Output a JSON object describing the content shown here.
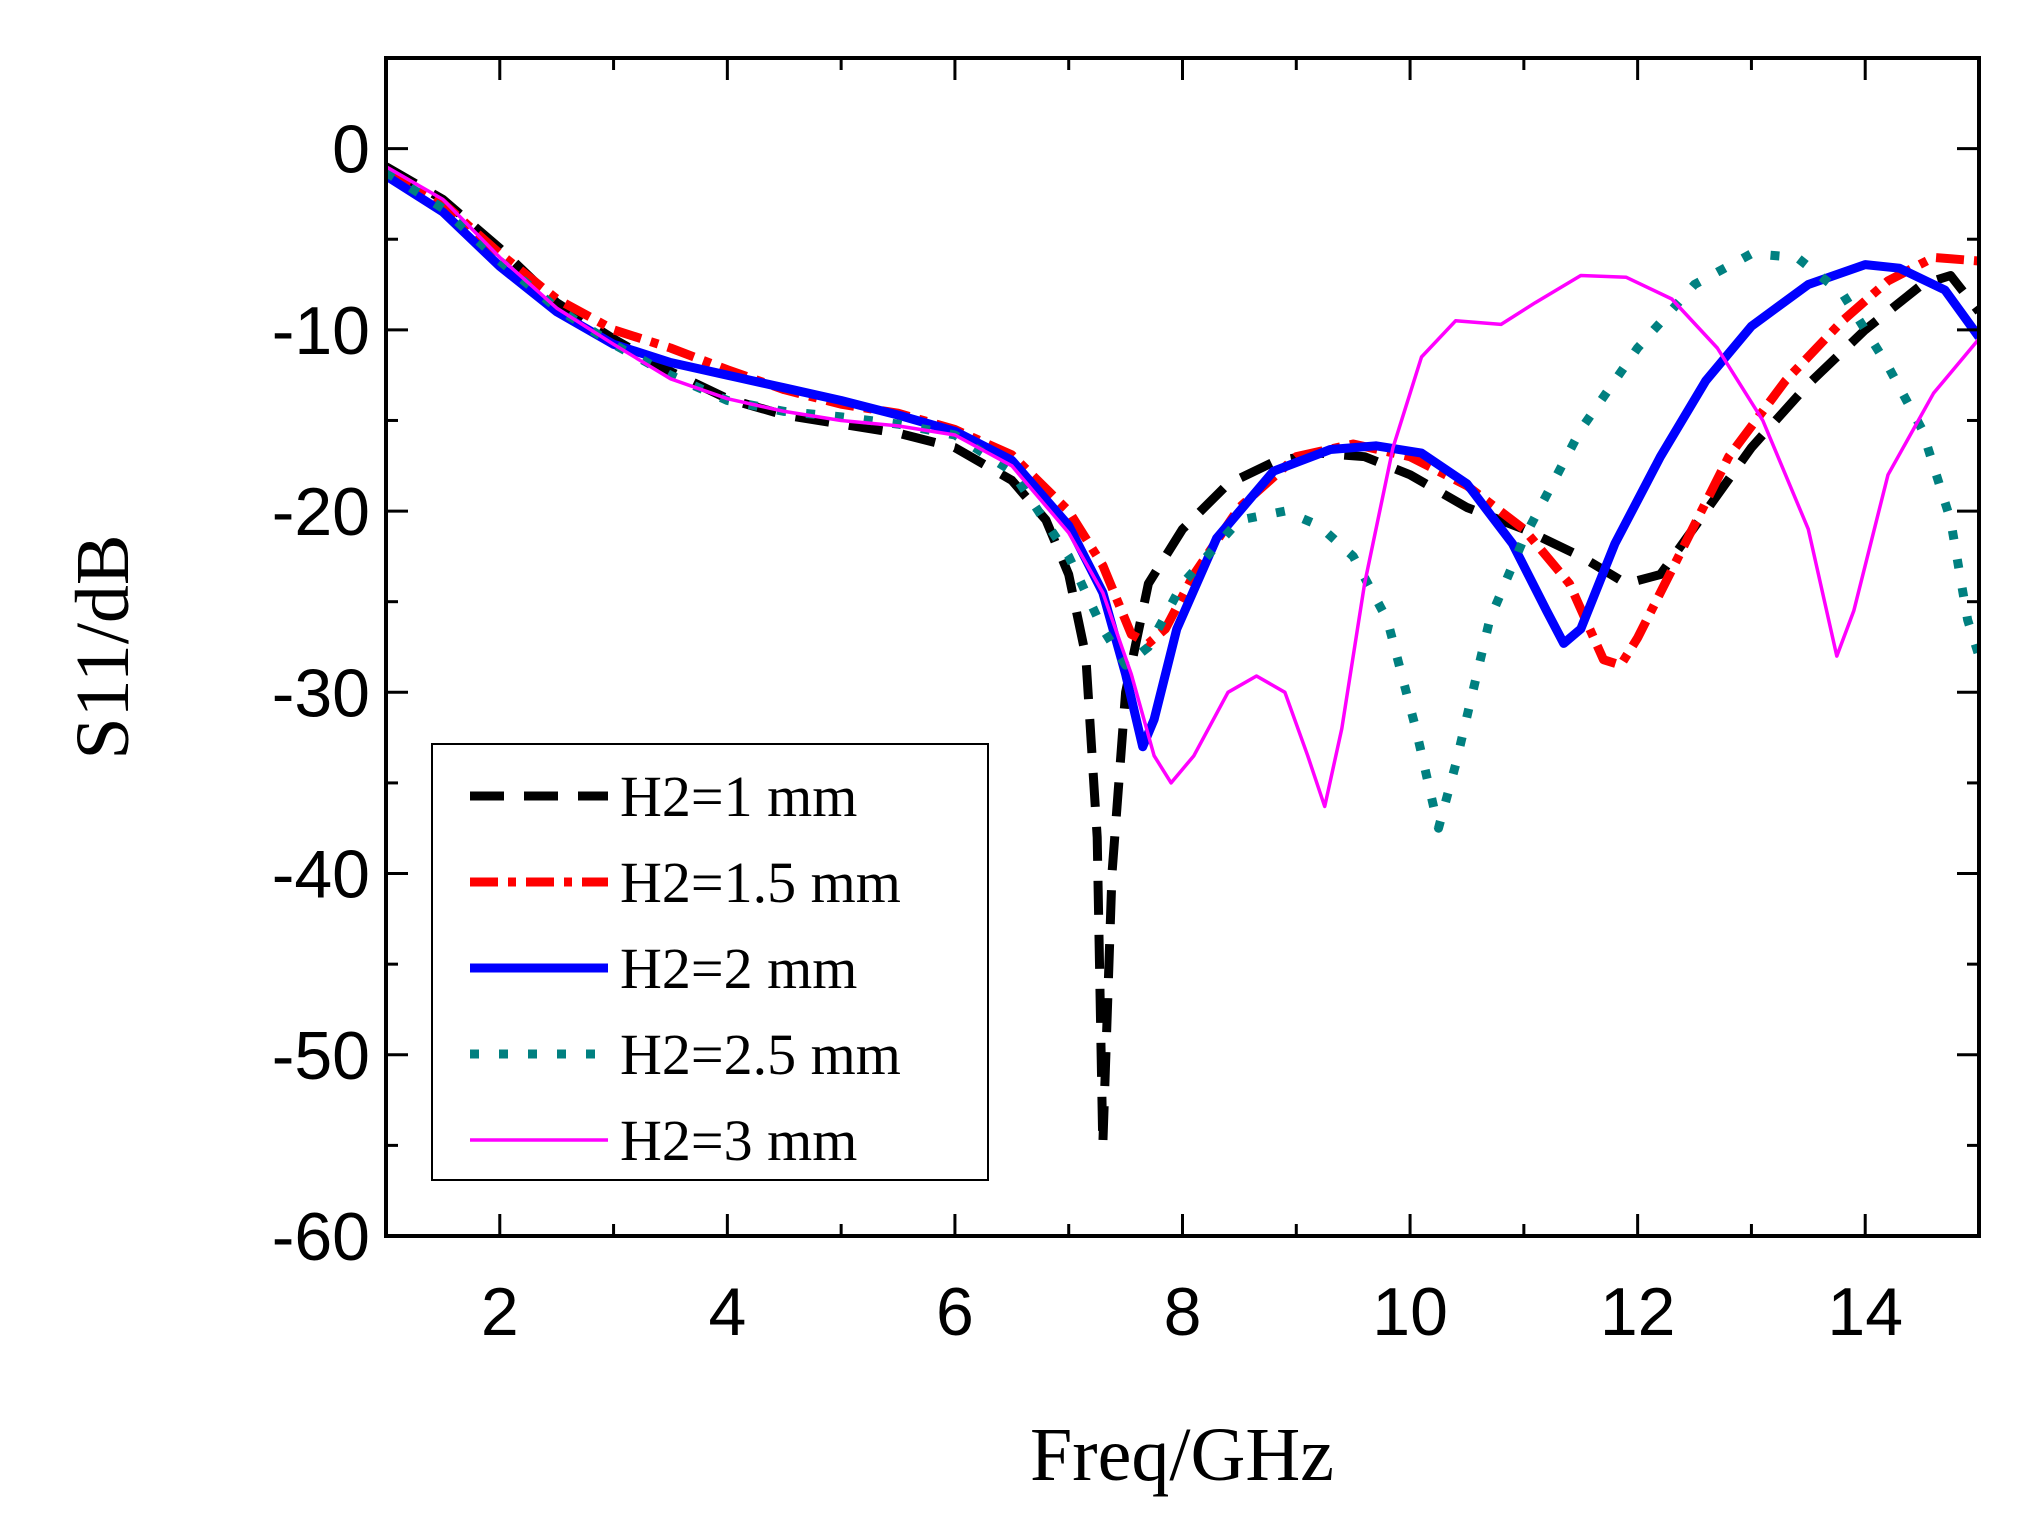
{
  "chart_data": {
    "type": "line",
    "title": "",
    "xlabel": "Freq/GHz",
    "ylabel": "S11/dB",
    "xlim": [
      1,
      15
    ],
    "ylim": [
      -60,
      5
    ],
    "x_ticks": [
      2,
      4,
      6,
      8,
      10,
      12,
      14
    ],
    "x_tick_labels": [
      "2",
      "4",
      "6",
      "8",
      "10",
      "12",
      "14"
    ],
    "y_ticks": [
      0,
      -10,
      -20,
      -30,
      -40,
      -50,
      -60
    ],
    "y_tick_labels": [
      "0",
      "-10",
      "-20",
      "-30",
      "-40",
      "-50",
      "-60"
    ],
    "grid": false,
    "legend_position": "bottom-left",
    "series": [
      {
        "name": "H2=1 mm",
        "color": "#000000",
        "style": "dash",
        "points": [
          [
            1.0,
            -1.0
          ],
          [
            1.5,
            -2.8
          ],
          [
            2.0,
            -5.5
          ],
          [
            2.5,
            -8.5
          ],
          [
            3.0,
            -10.5
          ],
          [
            3.5,
            -12.3
          ],
          [
            4.0,
            -13.8
          ],
          [
            4.5,
            -14.7
          ],
          [
            5.0,
            -15.2
          ],
          [
            5.5,
            -15.7
          ],
          [
            6.0,
            -16.5
          ],
          [
            6.5,
            -18.3
          ],
          [
            6.8,
            -20.5
          ],
          [
            7.0,
            -23.5
          ],
          [
            7.15,
            -28.0
          ],
          [
            7.25,
            -38.0
          ],
          [
            7.3,
            -55.0
          ],
          [
            7.38,
            -40.0
          ],
          [
            7.5,
            -30.0
          ],
          [
            7.7,
            -24.0
          ],
          [
            8.0,
            -21.0
          ],
          [
            8.4,
            -18.5
          ],
          [
            8.8,
            -17.3
          ],
          [
            9.2,
            -16.8
          ],
          [
            9.6,
            -17.0
          ],
          [
            10.0,
            -18.0
          ],
          [
            10.5,
            -19.8
          ],
          [
            11.0,
            -21.0
          ],
          [
            11.5,
            -22.5
          ],
          [
            11.9,
            -24.0
          ],
          [
            12.2,
            -23.5
          ],
          [
            12.6,
            -20.0
          ],
          [
            13.0,
            -16.5
          ],
          [
            13.5,
            -13.0
          ],
          [
            14.0,
            -10.0
          ],
          [
            14.5,
            -7.5
          ],
          [
            14.75,
            -7.0
          ],
          [
            15.0,
            -9.0
          ]
        ]
      },
      {
        "name": "H2=1.5 mm",
        "color": "#ff0000",
        "style": "dashdot",
        "points": [
          [
            1.0,
            -1.2
          ],
          [
            1.5,
            -3.0
          ],
          [
            2.0,
            -5.8
          ],
          [
            2.5,
            -8.3
          ],
          [
            3.0,
            -10.0
          ],
          [
            3.5,
            -11.0
          ],
          [
            4.0,
            -12.2
          ],
          [
            4.5,
            -13.3
          ],
          [
            5.0,
            -14.1
          ],
          [
            5.5,
            -14.6
          ],
          [
            6.0,
            -15.5
          ],
          [
            6.5,
            -16.9
          ],
          [
            7.0,
            -20.0
          ],
          [
            7.3,
            -23.0
          ],
          [
            7.55,
            -26.8
          ],
          [
            7.7,
            -27.3
          ],
          [
            7.85,
            -26.5
          ],
          [
            8.1,
            -23.5
          ],
          [
            8.5,
            -19.8
          ],
          [
            9.0,
            -17.0
          ],
          [
            9.5,
            -16.3
          ],
          [
            10.0,
            -17.0
          ],
          [
            10.5,
            -18.6
          ],
          [
            11.0,
            -21.0
          ],
          [
            11.4,
            -24.0
          ],
          [
            11.7,
            -28.2
          ],
          [
            11.85,
            -28.5
          ],
          [
            12.0,
            -27.0
          ],
          [
            12.4,
            -22.0
          ],
          [
            12.8,
            -17.0
          ],
          [
            13.3,
            -12.8
          ],
          [
            13.8,
            -9.5
          ],
          [
            14.2,
            -7.3
          ],
          [
            14.6,
            -6.0
          ],
          [
            15.0,
            -6.2
          ]
        ]
      },
      {
        "name": "H2=2 mm",
        "color": "#0000ff",
        "style": "solid-thick",
        "points": [
          [
            1.0,
            -1.5
          ],
          [
            1.5,
            -3.5
          ],
          [
            2.0,
            -6.5
          ],
          [
            2.5,
            -9.0
          ],
          [
            3.0,
            -10.8
          ],
          [
            3.5,
            -11.8
          ],
          [
            4.0,
            -12.5
          ],
          [
            4.5,
            -13.2
          ],
          [
            5.0,
            -13.9
          ],
          [
            5.5,
            -14.7
          ],
          [
            6.0,
            -15.6
          ],
          [
            6.5,
            -17.2
          ],
          [
            7.0,
            -20.8
          ],
          [
            7.3,
            -24.5
          ],
          [
            7.5,
            -29.0
          ],
          [
            7.65,
            -33.0
          ],
          [
            7.75,
            -31.5
          ],
          [
            7.95,
            -26.5
          ],
          [
            8.3,
            -21.5
          ],
          [
            8.8,
            -17.8
          ],
          [
            9.3,
            -16.6
          ],
          [
            9.7,
            -16.4
          ],
          [
            10.1,
            -16.8
          ],
          [
            10.5,
            -18.5
          ],
          [
            10.9,
            -21.8
          ],
          [
            11.2,
            -25.5
          ],
          [
            11.35,
            -27.3
          ],
          [
            11.5,
            -26.5
          ],
          [
            11.8,
            -21.8
          ],
          [
            12.2,
            -17.0
          ],
          [
            12.6,
            -12.8
          ],
          [
            13.0,
            -9.8
          ],
          [
            13.5,
            -7.5
          ],
          [
            14.0,
            -6.4
          ],
          [
            14.3,
            -6.6
          ],
          [
            14.7,
            -7.8
          ],
          [
            15.0,
            -10.4
          ]
        ]
      },
      {
        "name": "H2=2.5 mm",
        "color": "#008080",
        "style": "dot",
        "points": [
          [
            1.0,
            -1.3
          ],
          [
            1.5,
            -3.3
          ],
          [
            2.0,
            -6.2
          ],
          [
            2.5,
            -8.8
          ],
          [
            3.0,
            -10.8
          ],
          [
            3.5,
            -12.5
          ],
          [
            4.0,
            -13.9
          ],
          [
            4.5,
            -14.5
          ],
          [
            5.0,
            -14.8
          ],
          [
            5.5,
            -15.2
          ],
          [
            6.0,
            -15.8
          ],
          [
            6.5,
            -17.8
          ],
          [
            7.0,
            -22.5
          ],
          [
            7.3,
            -26.5
          ],
          [
            7.5,
            -28.5
          ],
          [
            7.7,
            -27.5
          ],
          [
            8.0,
            -24.0
          ],
          [
            8.5,
            -20.5
          ],
          [
            8.9,
            -20.0
          ],
          [
            9.2,
            -20.8
          ],
          [
            9.5,
            -22.5
          ],
          [
            9.8,
            -26.0
          ],
          [
            10.05,
            -32.0
          ],
          [
            10.25,
            -37.5
          ],
          [
            10.4,
            -34.0
          ],
          [
            10.7,
            -26.0
          ],
          [
            11.0,
            -21.5
          ],
          [
            11.5,
            -15.5
          ],
          [
            12.0,
            -11.0
          ],
          [
            12.5,
            -7.5
          ],
          [
            13.0,
            -5.8
          ],
          [
            13.4,
            -6.0
          ],
          [
            13.8,
            -8.0
          ],
          [
            14.2,
            -12.0
          ],
          [
            14.5,
            -15.5
          ],
          [
            14.75,
            -20.5
          ],
          [
            14.9,
            -26.0
          ],
          [
            15.0,
            -28.0
          ]
        ]
      },
      {
        "name": "H2=3 mm",
        "color": "#ff00ff",
        "style": "solid-thin",
        "points": [
          [
            1.0,
            -1.0
          ],
          [
            1.5,
            -2.8
          ],
          [
            2.0,
            -6.0
          ],
          [
            2.5,
            -8.8
          ],
          [
            3.0,
            -10.8
          ],
          [
            3.5,
            -12.7
          ],
          [
            4.0,
            -13.8
          ],
          [
            4.5,
            -14.5
          ],
          [
            5.0,
            -15.0
          ],
          [
            5.5,
            -15.3
          ],
          [
            6.0,
            -15.8
          ],
          [
            6.5,
            -17.5
          ],
          [
            7.0,
            -21.2
          ],
          [
            7.3,
            -24.5
          ],
          [
            7.55,
            -29.0
          ],
          [
            7.75,
            -33.5
          ],
          [
            7.9,
            -35.0
          ],
          [
            8.1,
            -33.5
          ],
          [
            8.4,
            -30.0
          ],
          [
            8.65,
            -29.1
          ],
          [
            8.9,
            -30.0
          ],
          [
            9.1,
            -33.5
          ],
          [
            9.25,
            -36.3
          ],
          [
            9.4,
            -32.0
          ],
          [
            9.6,
            -24.0
          ],
          [
            9.85,
            -16.5
          ],
          [
            10.1,
            -11.5
          ],
          [
            10.4,
            -9.5
          ],
          [
            10.8,
            -9.7
          ],
          [
            11.1,
            -8.5
          ],
          [
            11.5,
            -7.0
          ],
          [
            11.9,
            -7.1
          ],
          [
            12.3,
            -8.3
          ],
          [
            12.7,
            -11.0
          ],
          [
            13.1,
            -15.0
          ],
          [
            13.5,
            -21.0
          ],
          [
            13.75,
            -28.0
          ],
          [
            13.9,
            -25.5
          ],
          [
            14.2,
            -18.0
          ],
          [
            14.6,
            -13.5
          ],
          [
            15.0,
            -10.5
          ]
        ]
      }
    ]
  }
}
